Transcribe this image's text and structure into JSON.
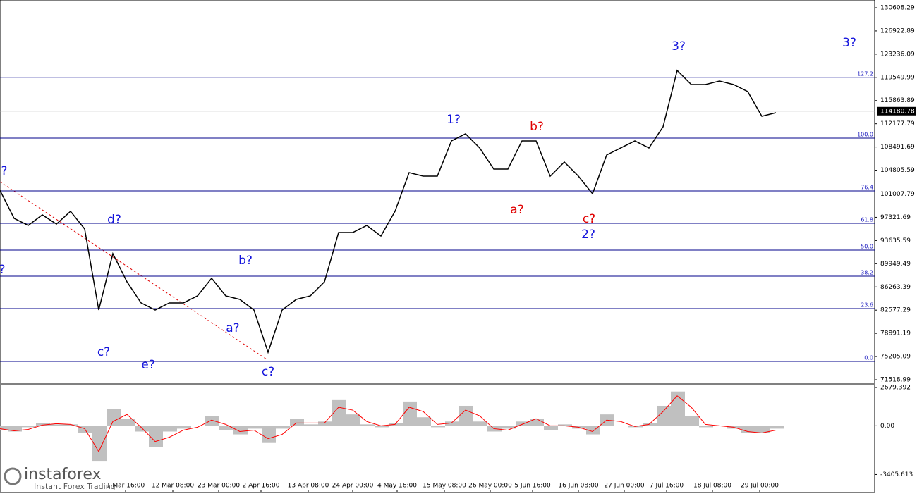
{
  "chart_data": [
    {
      "type": "line",
      "series": [
        {
          "color": "#000000",
          "values": [
            101600,
            97150,
            96030,
            97710,
            96250,
            98270,
            95470,
            82600,
            91550,
            87080,
            83720,
            82600,
            83720,
            83720,
            84840,
            87640,
            84840,
            84280,
            82600,
            75880,
            82600,
            84280,
            84840,
            87080,
            94910,
            94910,
            96030,
            94350,
            98270,
            104420,
            103860,
            103860,
            109460,
            110580,
            108340,
            104980,
            104980,
            109460,
            109460,
            103860,
            106100,
            103860,
            101060,
            107220,
            108340,
            109460,
            108340,
            111700,
            120650,
            118410,
            118410,
            118970,
            118410,
            117290,
            113370,
            113930
          ]
        }
      ],
      "xlim": [
        0,
        62
      ],
      "xticks": [
        {
          "value": 8.9,
          "label": "1 Mar 16:00"
        },
        {
          "value": 12.25,
          "label": "12 Mar 08:00"
        },
        {
          "value": 15.5,
          "label": "23 Mar 00:00"
        },
        {
          "value": 18.5,
          "label": "2 Apr 16:00"
        },
        {
          "value": 21.85,
          "label": "13 Apr 08:00"
        },
        {
          "value": 25,
          "label": "24 Apr 00:00"
        },
        {
          "value": 28.15,
          "label": "4 May 16:00"
        },
        {
          "value": 31.5,
          "label": "15 May 08:00"
        },
        {
          "value": 34.75,
          "label": "26 May 00:00"
        },
        {
          "value": 37.75,
          "label": "5 Jun 16:00"
        },
        {
          "value": 41,
          "label": "16 Jun 08:00"
        },
        {
          "value": 44.25,
          "label": "27 Jun 00:00"
        },
        {
          "value": 47.25,
          "label": "7 Jul 16:00"
        },
        {
          "value": 50.5,
          "label": "18 Jul 08:00"
        },
        {
          "value": 53.85,
          "label": "29 Jul 00:00"
        }
      ],
      "ylim": [
        70960,
        131839
      ],
      "yticks": [
        130608.29,
        126922.89,
        123236.09,
        119549.99,
        115863.89,
        112177.79,
        108491.69,
        104805.59,
        101007.79,
        97321.69,
        93635.59,
        89949.49,
        86263.39,
        82577.29,
        78891.19,
        75205.09,
        71518.99
      ],
      "current_price": 114180.78,
      "levels": [
        {
          "label": "127.2",
          "value": 119554
        },
        {
          "label": "100.0",
          "value": 109905
        },
        {
          "label": "76.4",
          "value": 101511
        },
        {
          "label": "61.8",
          "value": 96364
        },
        {
          "label": "50.0",
          "value": 92111
        },
        {
          "label": "38.2",
          "value": 87972
        },
        {
          "label": "23.6",
          "value": 82823
        },
        {
          "label": "0.0",
          "value": 74430
        }
      ],
      "level_color": "#00008b",
      "annotations": [
        {
          "text": "?",
          "color": "#1414dc"
        },
        {
          "text": "?",
          "color": "#1414dc"
        },
        {
          "text": "d?",
          "color": "#1414dc"
        },
        {
          "text": "c?",
          "color": "#1414dc"
        },
        {
          "text": "e?",
          "color": "#1414dc"
        },
        {
          "text": "b?",
          "color": "#1414dc"
        },
        {
          "text": "a?",
          "color": "#1414dc"
        },
        {
          "text": "c?",
          "color": "#1414dc"
        },
        {
          "text": "1?",
          "color": "#1414dc"
        },
        {
          "text": "b?",
          "color": "#e00000"
        },
        {
          "text": "a?",
          "color": "#e00000"
        },
        {
          "text": "c?",
          "color": "#e00000"
        },
        {
          "text": "2?",
          "color": "#1414dc"
        },
        {
          "text": "3?",
          "color": "#1414dc"
        },
        {
          "text": "3?",
          "color": "#1414dc"
        }
      ]
    },
    {
      "type": "bar",
      "series": [
        {
          "kind": "bar",
          "color": "#c0c0c0",
          "values": [
            -300,
            -400,
            -100,
            200,
            100,
            100,
            -500,
            -2500,
            1200,
            500,
            -400,
            -1500,
            -400,
            -200,
            0,
            700,
            -300,
            -600,
            -200,
            -1200,
            -200,
            500,
            100,
            300,
            1800,
            800,
            100,
            -100,
            200,
            1700,
            600,
            -100,
            300,
            1400,
            300,
            -400,
            -200,
            300,
            500,
            -300,
            100,
            -200,
            -600,
            800,
            0,
            -100,
            200,
            1400,
            2400,
            700,
            -100,
            0,
            -200,
            -500,
            -500,
            -200
          ]
        },
        {
          "kind": "line",
          "color": "#ff0000",
          "values": [
            -200,
            -350,
            -250,
            50,
            150,
            100,
            -200,
            -1800,
            300,
            800,
            -100,
            -1100,
            -800,
            -300,
            -100,
            400,
            100,
            -400,
            -300,
            -900,
            -600,
            200,
            200,
            200,
            1300,
            1100,
            300,
            0,
            100,
            1300,
            1000,
            100,
            200,
            1100,
            700,
            -200,
            -300,
            100,
            500,
            0,
            0,
            -100,
            -400,
            400,
            300,
            -50,
            100,
            1000,
            2100,
            1300,
            100,
            0,
            -100,
            -400,
            -500,
            -300
          ]
        }
      ],
      "ylim": [
        -4714,
        2878
      ],
      "yticks": [
        2679.392,
        {
          "value": 0,
          "label": "0.00"
        },
        -3405.613
      ]
    }
  ],
  "watermark": {
    "brand": "instaforex",
    "tagline": "Instant Forex Trading"
  }
}
